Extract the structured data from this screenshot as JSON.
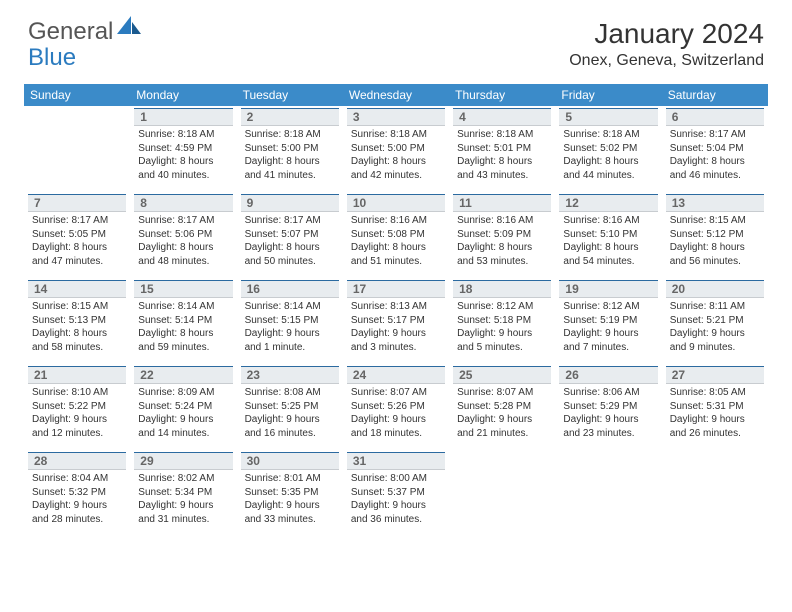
{
  "brand": {
    "part1": "General",
    "part2": "Blue"
  },
  "title": "January 2024",
  "location": "Onex, Geneva, Switzerland",
  "colors": {
    "header_bg": "#3b8bc9",
    "header_text": "#ffffff",
    "daynum_bg": "#e8ecef",
    "daynum_border_top": "#2b6aa0",
    "text": "#333333",
    "brand_blue": "#2b7bbf"
  },
  "weekdays": [
    "Sunday",
    "Monday",
    "Tuesday",
    "Wednesday",
    "Thursday",
    "Friday",
    "Saturday"
  ],
  "grid": [
    [
      {
        "n": "",
        "sr": "",
        "ss": "",
        "dl": ""
      },
      {
        "n": "1",
        "sr": "Sunrise: 8:18 AM",
        "ss": "Sunset: 4:59 PM",
        "dl": "Daylight: 8 hours and 40 minutes."
      },
      {
        "n": "2",
        "sr": "Sunrise: 8:18 AM",
        "ss": "Sunset: 5:00 PM",
        "dl": "Daylight: 8 hours and 41 minutes."
      },
      {
        "n": "3",
        "sr": "Sunrise: 8:18 AM",
        "ss": "Sunset: 5:00 PM",
        "dl": "Daylight: 8 hours and 42 minutes."
      },
      {
        "n": "4",
        "sr": "Sunrise: 8:18 AM",
        "ss": "Sunset: 5:01 PM",
        "dl": "Daylight: 8 hours and 43 minutes."
      },
      {
        "n": "5",
        "sr": "Sunrise: 8:18 AM",
        "ss": "Sunset: 5:02 PM",
        "dl": "Daylight: 8 hours and 44 minutes."
      },
      {
        "n": "6",
        "sr": "Sunrise: 8:17 AM",
        "ss": "Sunset: 5:04 PM",
        "dl": "Daylight: 8 hours and 46 minutes."
      }
    ],
    [
      {
        "n": "7",
        "sr": "Sunrise: 8:17 AM",
        "ss": "Sunset: 5:05 PM",
        "dl": "Daylight: 8 hours and 47 minutes."
      },
      {
        "n": "8",
        "sr": "Sunrise: 8:17 AM",
        "ss": "Sunset: 5:06 PM",
        "dl": "Daylight: 8 hours and 48 minutes."
      },
      {
        "n": "9",
        "sr": "Sunrise: 8:17 AM",
        "ss": "Sunset: 5:07 PM",
        "dl": "Daylight: 8 hours and 50 minutes."
      },
      {
        "n": "10",
        "sr": "Sunrise: 8:16 AM",
        "ss": "Sunset: 5:08 PM",
        "dl": "Daylight: 8 hours and 51 minutes."
      },
      {
        "n": "11",
        "sr": "Sunrise: 8:16 AM",
        "ss": "Sunset: 5:09 PM",
        "dl": "Daylight: 8 hours and 53 minutes."
      },
      {
        "n": "12",
        "sr": "Sunrise: 8:16 AM",
        "ss": "Sunset: 5:10 PM",
        "dl": "Daylight: 8 hours and 54 minutes."
      },
      {
        "n": "13",
        "sr": "Sunrise: 8:15 AM",
        "ss": "Sunset: 5:12 PM",
        "dl": "Daylight: 8 hours and 56 minutes."
      }
    ],
    [
      {
        "n": "14",
        "sr": "Sunrise: 8:15 AM",
        "ss": "Sunset: 5:13 PM",
        "dl": "Daylight: 8 hours and 58 minutes."
      },
      {
        "n": "15",
        "sr": "Sunrise: 8:14 AM",
        "ss": "Sunset: 5:14 PM",
        "dl": "Daylight: 8 hours and 59 minutes."
      },
      {
        "n": "16",
        "sr": "Sunrise: 8:14 AM",
        "ss": "Sunset: 5:15 PM",
        "dl": "Daylight: 9 hours and 1 minute."
      },
      {
        "n": "17",
        "sr": "Sunrise: 8:13 AM",
        "ss": "Sunset: 5:17 PM",
        "dl": "Daylight: 9 hours and 3 minutes."
      },
      {
        "n": "18",
        "sr": "Sunrise: 8:12 AM",
        "ss": "Sunset: 5:18 PM",
        "dl": "Daylight: 9 hours and 5 minutes."
      },
      {
        "n": "19",
        "sr": "Sunrise: 8:12 AM",
        "ss": "Sunset: 5:19 PM",
        "dl": "Daylight: 9 hours and 7 minutes."
      },
      {
        "n": "20",
        "sr": "Sunrise: 8:11 AM",
        "ss": "Sunset: 5:21 PM",
        "dl": "Daylight: 9 hours and 9 minutes."
      }
    ],
    [
      {
        "n": "21",
        "sr": "Sunrise: 8:10 AM",
        "ss": "Sunset: 5:22 PM",
        "dl": "Daylight: 9 hours and 12 minutes."
      },
      {
        "n": "22",
        "sr": "Sunrise: 8:09 AM",
        "ss": "Sunset: 5:24 PM",
        "dl": "Daylight: 9 hours and 14 minutes."
      },
      {
        "n": "23",
        "sr": "Sunrise: 8:08 AM",
        "ss": "Sunset: 5:25 PM",
        "dl": "Daylight: 9 hours and 16 minutes."
      },
      {
        "n": "24",
        "sr": "Sunrise: 8:07 AM",
        "ss": "Sunset: 5:26 PM",
        "dl": "Daylight: 9 hours and 18 minutes."
      },
      {
        "n": "25",
        "sr": "Sunrise: 8:07 AM",
        "ss": "Sunset: 5:28 PM",
        "dl": "Daylight: 9 hours and 21 minutes."
      },
      {
        "n": "26",
        "sr": "Sunrise: 8:06 AM",
        "ss": "Sunset: 5:29 PM",
        "dl": "Daylight: 9 hours and 23 minutes."
      },
      {
        "n": "27",
        "sr": "Sunrise: 8:05 AM",
        "ss": "Sunset: 5:31 PM",
        "dl": "Daylight: 9 hours and 26 minutes."
      }
    ],
    [
      {
        "n": "28",
        "sr": "Sunrise: 8:04 AM",
        "ss": "Sunset: 5:32 PM",
        "dl": "Daylight: 9 hours and 28 minutes."
      },
      {
        "n": "29",
        "sr": "Sunrise: 8:02 AM",
        "ss": "Sunset: 5:34 PM",
        "dl": "Daylight: 9 hours and 31 minutes."
      },
      {
        "n": "30",
        "sr": "Sunrise: 8:01 AM",
        "ss": "Sunset: 5:35 PM",
        "dl": "Daylight: 9 hours and 33 minutes."
      },
      {
        "n": "31",
        "sr": "Sunrise: 8:00 AM",
        "ss": "Sunset: 5:37 PM",
        "dl": "Daylight: 9 hours and 36 minutes."
      },
      {
        "n": "",
        "sr": "",
        "ss": "",
        "dl": ""
      },
      {
        "n": "",
        "sr": "",
        "ss": "",
        "dl": ""
      },
      {
        "n": "",
        "sr": "",
        "ss": "",
        "dl": ""
      }
    ]
  ]
}
